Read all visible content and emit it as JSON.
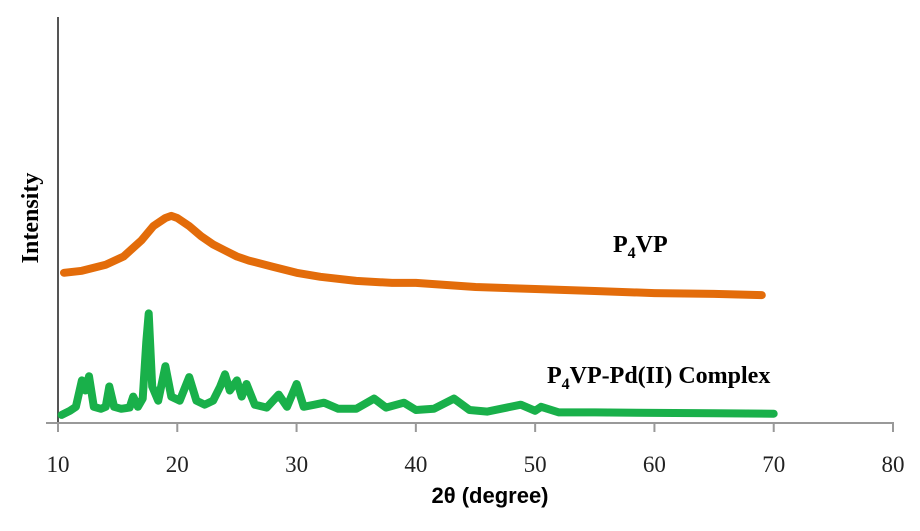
{
  "chart_data": {
    "type": "line",
    "title": "",
    "xlabel": "2θ (degree)",
    "ylabel": "Intensity",
    "xlim": [
      10,
      80
    ],
    "ylim": [
      0,
      100
    ],
    "x_ticks": [
      10,
      20,
      30,
      40,
      50,
      60,
      70,
      80
    ],
    "y_ticks": [],
    "grid": false,
    "legend": "none (inline labels beside curves)",
    "series": [
      {
        "name": "P4VP",
        "label_main": "P",
        "label_sub": "4",
        "label_rest": "VP",
        "color": "#E36C0A",
        "x": [
          10.5,
          12,
          14,
          15.5,
          17,
          18,
          19,
          19.5,
          20,
          21,
          22,
          23,
          24,
          25,
          26,
          28,
          30,
          32,
          35,
          38,
          40,
          45,
          50,
          55,
          60,
          65,
          69
        ],
        "y": [
          37,
          37.5,
          39,
          41,
          45,
          48.5,
          50.5,
          51,
          50.5,
          48.5,
          46,
          44,
          42.5,
          41,
          40,
          38.5,
          37,
          36,
          35,
          34.5,
          34.5,
          33.5,
          33,
          32.5,
          32,
          31.8,
          31.5
        ]
      },
      {
        "name": "P4VP-Pd(II) Complex",
        "label_main": "P",
        "label_sub": "4",
        "label_rest": "VP-Pd(II) Complex",
        "color": "#19B04A",
        "x": [
          10.3,
          11,
          11.5,
          12,
          12.3,
          12.6,
          13,
          13.6,
          14,
          14.3,
          14.7,
          15.3,
          16,
          16.3,
          16.7,
          17.1,
          17.4,
          17.6,
          17.9,
          18.4,
          19,
          19.5,
          20.2,
          21,
          21.6,
          22.3,
          23,
          23.6,
          24,
          24.4,
          25,
          25.4,
          25.8,
          26.5,
          27.5,
          28.5,
          29.2,
          30,
          30.6,
          31.5,
          32.3,
          33.5,
          35,
          36.5,
          37.5,
          39,
          40,
          41.5,
          43.2,
          44.5,
          46,
          48.8,
          50,
          50.5,
          52,
          55,
          60,
          65,
          70
        ],
        "y": [
          2,
          3,
          4,
          10.5,
          8,
          11.5,
          4,
          3.5,
          4,
          9,
          4,
          3.5,
          3.8,
          6.5,
          4,
          6,
          20,
          27,
          9,
          5.5,
          14,
          6.5,
          5.5,
          11.3,
          5.5,
          4.5,
          5.5,
          9,
          12,
          8,
          10.5,
          6.5,
          9.6,
          4.5,
          3.8,
          7,
          4,
          9.6,
          4,
          4.5,
          5,
          3.5,
          3.5,
          6,
          3.8,
          5,
          3.2,
          3.5,
          6,
          3.2,
          2.8,
          4.5,
          3,
          4,
          2.6,
          2.6,
          2.5,
          2.4,
          2.3
        ]
      }
    ]
  }
}
